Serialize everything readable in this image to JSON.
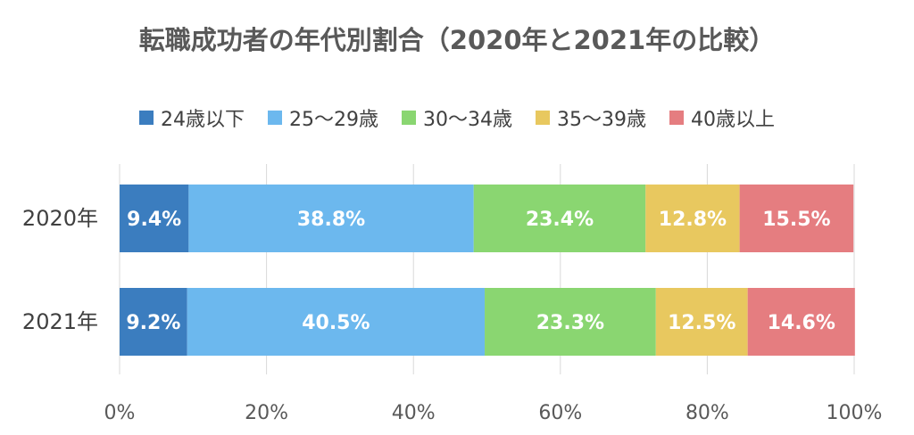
{
  "chart_data": {
    "type": "bar",
    "orientation": "horizontal",
    "stacked": "percent",
    "title": "転職成功者の年代別割合（2020年と2021年の比較）",
    "categories": [
      "2020年",
      "2021年"
    ],
    "series": [
      {
        "name": "24歳以下",
        "values": [
          9.4,
          9.2
        ],
        "color": "#3b7dbf",
        "labels": [
          "9.4%",
          "9.2%"
        ]
      },
      {
        "name": "25〜29歳",
        "values": [
          38.8,
          40.5
        ],
        "color": "#6cb8ee",
        "labels": [
          "38.8%",
          "40.5%"
        ]
      },
      {
        "name": "30〜34歳",
        "values": [
          23.4,
          23.3
        ],
        "color": "#8ad671",
        "labels": [
          "23.4%",
          "23.3%"
        ]
      },
      {
        "name": "35〜39歳",
        "values": [
          12.8,
          12.5
        ],
        "color": "#e8c85f",
        "labels": [
          "12.8%",
          "12.5%"
        ]
      },
      {
        "name": "40歳以上",
        "values": [
          15.5,
          14.6
        ],
        "color": "#e57d80",
        "labels": [
          "15.5%",
          "14.6%"
        ]
      }
    ],
    "xlim": [
      0,
      100
    ],
    "xticks": [
      "0%",
      "20%",
      "40%",
      "60%",
      "80%",
      "100%"
    ],
    "grid": true,
    "legend_position": "top"
  }
}
